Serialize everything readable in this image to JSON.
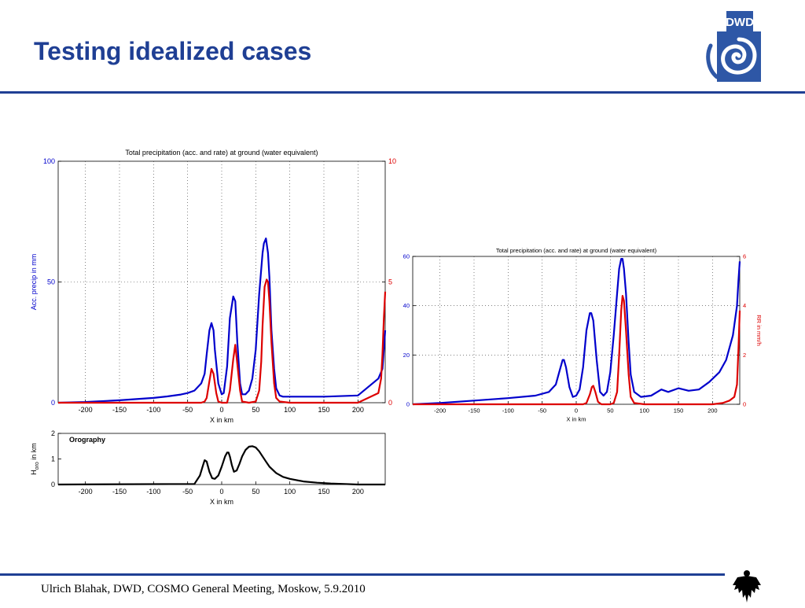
{
  "slide": {
    "title": "Testing idealized cases",
    "footer": "Ulrich Blahak, DWD, COSMO General Meeting, Moskow, 5.9.2010",
    "logo_text": "DWD",
    "accent_color": "#1f3f94"
  },
  "chart_data": [
    {
      "type": "line",
      "title": "Total precipitation (acc. and rate) at ground (water equivalent)",
      "xlabel": "X in km",
      "ylabel": "Acc. precip in mm",
      "ylabel_right": "",
      "xlim": [
        -240,
        240
      ],
      "ylim": [
        0,
        100
      ],
      "ylim_right": [
        0,
        10
      ],
      "xticks": [
        -200,
        -150,
        -100,
        -50,
        0,
        50,
        100,
        150,
        200
      ],
      "yticks": [
        0,
        50,
        100
      ],
      "yticks_right": [
        0,
        5,
        10
      ],
      "grid": true,
      "series": [
        {
          "axis": "left",
          "color": "#0000cc",
          "x": [
            -240,
            -200,
            -150,
            -100,
            -80,
            -60,
            -50,
            -40,
            -30,
            -25,
            -22,
            -18,
            -15,
            -12,
            -10,
            -5,
            0,
            3,
            8,
            12,
            17,
            20,
            23,
            27,
            30,
            35,
            40,
            45,
            50,
            55,
            60,
            62,
            65,
            68,
            70,
            73,
            77,
            80,
            85,
            90,
            100,
            150,
            200,
            230,
            236,
            238,
            240
          ],
          "y": [
            0,
            0.3,
            1,
            2,
            2.6,
            3.4,
            4,
            5,
            8,
            12,
            20,
            30,
            33,
            30,
            22,
            8,
            3.5,
            4,
            15,
            35,
            44,
            42,
            25,
            8,
            3.5,
            3.5,
            5,
            10,
            22,
            45,
            62,
            66,
            68,
            62,
            52,
            30,
            14,
            6,
            3,
            2.5,
            2.5,
            2.5,
            3,
            10,
            14,
            22,
            30
          ]
        },
        {
          "axis": "right",
          "color": "#dd0000",
          "x": [
            -240,
            -80,
            -40,
            -30,
            -25,
            -22,
            -18,
            -15,
            -12,
            -8,
            -5,
            0,
            8,
            12,
            17,
            20,
            23,
            27,
            30,
            40,
            50,
            55,
            58,
            60,
            63,
            66,
            68,
            70,
            73,
            77,
            80,
            85,
            100,
            150,
            200,
            230,
            234,
            236,
            238,
            240
          ],
          "y": [
            0,
            0,
            0,
            0,
            0.05,
            0.2,
            0.9,
            1.4,
            1.2,
            0.4,
            0.05,
            0,
            0,
            0.5,
            1.8,
            2.4,
            1.6,
            0.5,
            0.05,
            0,
            0.05,
            0.5,
            1.7,
            3.2,
            4.8,
            5.1,
            5,
            4.2,
            2.5,
            0.8,
            0.2,
            0.05,
            0,
            0,
            0,
            0.4,
            1,
            2,
            3.5,
            4.6
          ]
        }
      ]
    },
    {
      "type": "line",
      "title": "Total precipitation (acc. and rate) at ground (water equivalent)",
      "xlabel": "X in km",
      "ylabel": "",
      "ylabel_right": "RR in mm/h",
      "xlim": [
        -240,
        240
      ],
      "ylim": [
        0,
        60
      ],
      "ylim_right": [
        0,
        6
      ],
      "xticks": [
        -200,
        -150,
        -100,
        -50,
        0,
        50,
        100,
        150,
        200
      ],
      "yticks": [
        0,
        20,
        40,
        60
      ],
      "yticks_right": [
        0,
        2,
        4,
        6
      ],
      "grid": true,
      "series": [
        {
          "axis": "left",
          "color": "#0000cc",
          "x": [
            -240,
            -200,
            -150,
            -100,
            -60,
            -40,
            -30,
            -25,
            -20,
            -18,
            -15,
            -10,
            -5,
            0,
            5,
            10,
            15,
            20,
            22,
            25,
            30,
            35,
            40,
            45,
            50,
            55,
            60,
            63,
            66,
            68,
            70,
            73,
            77,
            80,
            85,
            95,
            110,
            125,
            135,
            150,
            165,
            180,
            195,
            210,
            220,
            230,
            236,
            238,
            240
          ],
          "y": [
            0,
            0.5,
            1.5,
            2.5,
            3.5,
            5,
            8,
            13,
            18,
            18,
            15,
            7,
            3,
            3.5,
            6,
            15,
            30,
            37,
            37,
            34,
            18,
            5,
            3.5,
            5,
            13,
            28,
            45,
            55,
            59,
            59,
            55,
            45,
            25,
            12,
            5,
            3,
            3.5,
            6,
            5,
            6.5,
            5.5,
            6,
            9,
            13,
            18,
            28,
            40,
            50,
            58
          ]
        },
        {
          "axis": "right",
          "color": "#dd0000",
          "x": [
            -240,
            -50,
            0,
            10,
            15,
            20,
            23,
            25,
            28,
            32,
            37,
            40,
            50,
            55,
            60,
            63,
            66,
            68,
            70,
            73,
            77,
            80,
            85,
            100,
            150,
            200,
            215,
            225,
            232,
            236,
            238,
            240
          ],
          "y": [
            0,
            0,
            0,
            0,
            0.05,
            0.4,
            0.7,
            0.75,
            0.5,
            0.1,
            0,
            0,
            0,
            0.05,
            0.5,
            2,
            3.8,
            4.4,
            4.2,
            3,
            1.2,
            0.3,
            0.05,
            0,
            0,
            0,
            0.05,
            0.15,
            0.3,
            0.8,
            2.2,
            3.8
          ]
        }
      ]
    },
    {
      "type": "line",
      "title": "Orography",
      "xlabel": "X in km",
      "ylabel": "H",
      "ylabel_sub": "oro",
      "ylabel_suffix": " in km",
      "xlim": [
        -240,
        240
      ],
      "ylim": [
        0,
        2
      ],
      "xticks": [
        -200,
        -150,
        -100,
        -50,
        0,
        50,
        100,
        150,
        200
      ],
      "yticks": [
        0,
        1,
        2
      ],
      "grid": false,
      "series": [
        {
          "axis": "left",
          "color": "#000000",
          "x": [
            -240,
            -40,
            -32,
            -28,
            -25,
            -22,
            -18,
            -14,
            -10,
            -5,
            0,
            5,
            8,
            10,
            12,
            15,
            18,
            22,
            26,
            30,
            35,
            40,
            45,
            50,
            55,
            60,
            65,
            70,
            80,
            90,
            100,
            120,
            140,
            160,
            180,
            200,
            240
          ],
          "y": [
            0,
            0.02,
            0.35,
            0.7,
            0.95,
            0.9,
            0.5,
            0.25,
            0.22,
            0.35,
            0.7,
            1.1,
            1.25,
            1.25,
            1.1,
            0.75,
            0.5,
            0.55,
            0.8,
            1.1,
            1.35,
            1.48,
            1.5,
            1.45,
            1.3,
            1.1,
            0.9,
            0.7,
            0.45,
            0.3,
            0.22,
            0.12,
            0.07,
            0.04,
            0.02,
            0,
            0
          ]
        }
      ]
    }
  ]
}
